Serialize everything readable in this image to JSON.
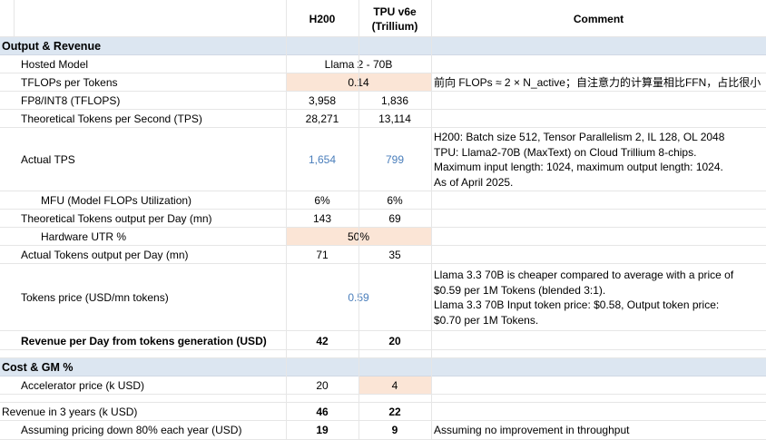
{
  "header": {
    "col_h200": "H200",
    "col_tpu_line1": "TPU v6e",
    "col_tpu_line2": "(Trillium)",
    "col_comment": "Comment"
  },
  "sections": {
    "output_revenue": "Output & Revenue",
    "cost_gm": "Cost & GM %"
  },
  "rows": {
    "hosted_model": {
      "label": "Hosted Model",
      "value": "Llama 2 - 70B"
    },
    "tflops_per_token": {
      "label": "TFLOPs per Tokens",
      "value": "0.14",
      "comment": "前向 FLOPs ≈ 2 × N_active；自注意力的计算量相比FFN，占比很小"
    },
    "fp8": {
      "label": "FP8/INT8 (TFLOPS)",
      "h200": "3,958",
      "tpu": "1,836"
    },
    "theoretical_tps": {
      "label": "Theoretical Tokens per Second (TPS)",
      "h200": "28,271",
      "tpu": "13,114"
    },
    "actual_tps": {
      "label": "Actual TPS",
      "h200": "1,654",
      "tpu": "799",
      "comment": [
        "H200: Batch size 512, Tensor Parallelism 2, IL 128, OL 2048",
        "TPU: Llama2-70B (MaxText) on Cloud Trillium 8-chips.",
        "Maximum input length: 1024, maximum output length: 1024.",
        "As of April 2025."
      ]
    },
    "mfu": {
      "label": "MFU (Model FLOPs Utilization)",
      "h200": "6%",
      "tpu": "6%"
    },
    "theoretical_output_day": {
      "label": "Theoretical Tokens output per Day (mn)",
      "h200": "143",
      "tpu": "69"
    },
    "hardware_utr": {
      "label": "Hardware UTR %",
      "value": "50%"
    },
    "actual_output_day": {
      "label": "Actual Tokens output per Day (mn)",
      "h200": "71",
      "tpu": "35"
    },
    "tokens_price": {
      "label": "Tokens price (USD/mn tokens)",
      "value": "0.59",
      "comment": [
        "Llama 3.3 70B is cheaper compared to average with a price of",
        "$0.59 per 1M Tokens (blended 3:1).",
        "Llama 3.3 70B Input token price: $0.58, Output token price:",
        "$0.70 per 1M Tokens."
      ]
    },
    "revenue_day": {
      "label": "Revenue per Day from tokens generation (USD)",
      "h200": "42",
      "tpu": "20"
    },
    "accelerator_price": {
      "label": "Accelerator price (k USD)",
      "h200": "20",
      "tpu": "4"
    },
    "revenue_3y": {
      "label": "Revenue in 3 years (k USD)",
      "h200": "46",
      "tpu": "22"
    },
    "pricing_down": {
      "label": "Assuming pricing down 80% each year (USD)",
      "h200": "19",
      "tpu": "9",
      "comment": "Assuming no improvement in throughput"
    }
  },
  "colors": {
    "section_bg": "#dce6f1",
    "highlight_bg": "#fbe5d6",
    "link_blue": "#4a7ebb"
  }
}
